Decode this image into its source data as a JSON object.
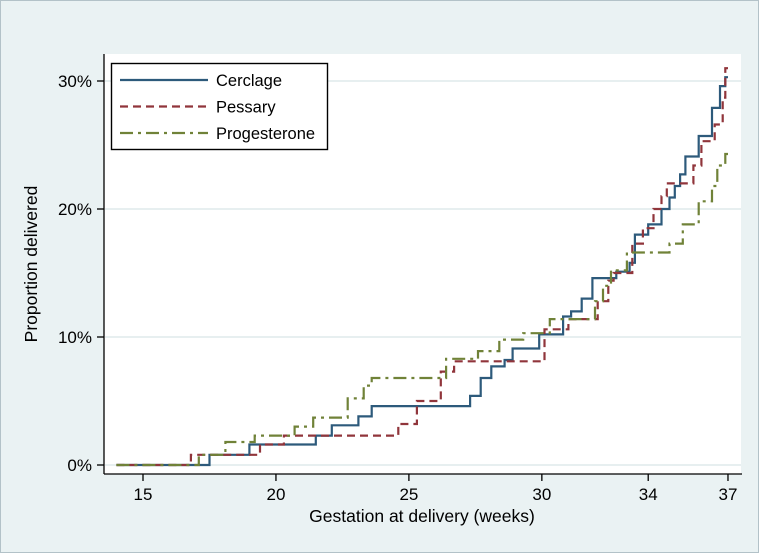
{
  "figure": {
    "background_color": "#eaf2f3",
    "plot_background_color": "#ffffff",
    "gridline_color": "#dfeaec",
    "axis_color": "#000000",
    "legend_border_color": "#000000",
    "legend_background_color": "#ffffff"
  },
  "chart_data": {
    "type": "line",
    "subtype": "step",
    "title": "",
    "xlabel": "Gestation at delivery (weeks)",
    "ylabel": "Proportion delivered",
    "x_ticks": [
      15,
      20,
      25,
      30,
      34,
      37
    ],
    "x_tick_labels": [
      "15",
      "20",
      "25",
      "30",
      "34",
      "37"
    ],
    "y_ticks": [
      0,
      10,
      20,
      30
    ],
    "y_tick_labels": [
      "0%",
      "10%",
      "20%",
      "30%"
    ],
    "xlim": [
      13.5,
      37.5
    ],
    "ylim_percent": [
      0,
      32
    ],
    "grid": "horizontal",
    "legend_position": "top-left",
    "x_end_week": 37,
    "series": [
      {
        "name": "Cerclage",
        "color": "#2d5a7b",
        "line_style": "solid",
        "points": [
          [
            14,
            0
          ],
          [
            17.5,
            0.8
          ],
          [
            19.0,
            1.6
          ],
          [
            21.5,
            2.3
          ],
          [
            22.1,
            3.1
          ],
          [
            23.1,
            3.8
          ],
          [
            23.6,
            4.6
          ],
          [
            27.3,
            5.4
          ],
          [
            27.7,
            6.8
          ],
          [
            28.1,
            7.7
          ],
          [
            28.6,
            8.2
          ],
          [
            28.9,
            9.1
          ],
          [
            29.9,
            10.2
          ],
          [
            30.8,
            11.6
          ],
          [
            31.1,
            12.0
          ],
          [
            31.5,
            13.0
          ],
          [
            31.9,
            14.6
          ],
          [
            32.8,
            15.1
          ],
          [
            33.3,
            15.8
          ],
          [
            33.5,
            18.0
          ],
          [
            34.0,
            18.8
          ],
          [
            34.5,
            20.0
          ],
          [
            34.8,
            20.9
          ],
          [
            35.0,
            21.8
          ],
          [
            35.2,
            22.7
          ],
          [
            35.4,
            24.1
          ],
          [
            35.9,
            25.7
          ],
          [
            36.4,
            27.9
          ],
          [
            36.7,
            29.6
          ],
          [
            36.9,
            30.3
          ]
        ]
      },
      {
        "name": "Pessary",
        "color": "#90353b",
        "line_style": "dashed",
        "points": [
          [
            14,
            0
          ],
          [
            16.8,
            0.8
          ],
          [
            19.4,
            1.6
          ],
          [
            20.3,
            2.3
          ],
          [
            24.6,
            3.2
          ],
          [
            25.3,
            5.0
          ],
          [
            26.2,
            7.3
          ],
          [
            26.7,
            8.1
          ],
          [
            30.1,
            10.6
          ],
          [
            31.0,
            11.4
          ],
          [
            32.1,
            12.8
          ],
          [
            32.5,
            14.4
          ],
          [
            32.7,
            15.0
          ],
          [
            33.4,
            17.3
          ],
          [
            33.8,
            18.5
          ],
          [
            34.2,
            20.0
          ],
          [
            34.5,
            21.0
          ],
          [
            34.7,
            22.0
          ],
          [
            35.7,
            23.4
          ],
          [
            36.0,
            25.3
          ],
          [
            36.5,
            26.6
          ],
          [
            36.8,
            28.7
          ],
          [
            36.9,
            31.0
          ]
        ]
      },
      {
        "name": "Progesterone",
        "color": "#708238",
        "line_style": "dash-dot",
        "points": [
          [
            14,
            0
          ],
          [
            17.1,
            0.8
          ],
          [
            18.1,
            1.8
          ],
          [
            19.2,
            2.3
          ],
          [
            20.7,
            3.0
          ],
          [
            21.4,
            3.7
          ],
          [
            22.7,
            5.2
          ],
          [
            23.3,
            6.2
          ],
          [
            23.6,
            6.8
          ],
          [
            26.4,
            8.3
          ],
          [
            27.6,
            8.9
          ],
          [
            28.4,
            9.8
          ],
          [
            29.3,
            10.3
          ],
          [
            30.3,
            11.4
          ],
          [
            32.0,
            12.8
          ],
          [
            32.3,
            14.0
          ],
          [
            32.6,
            15.2
          ],
          [
            33.2,
            16.6
          ],
          [
            34.8,
            17.3
          ],
          [
            35.3,
            18.8
          ],
          [
            35.9,
            20.6
          ],
          [
            36.4,
            21.8
          ],
          [
            36.6,
            23.4
          ],
          [
            36.9,
            24.3
          ]
        ]
      }
    ]
  }
}
